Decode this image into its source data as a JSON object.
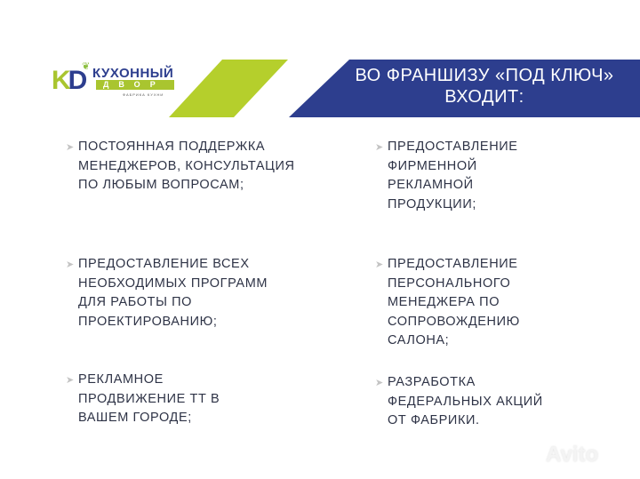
{
  "logo": {
    "mark": "KD",
    "name": "КУХОННЫЙ",
    "subname": "ДВОР",
    "tagline": "ФАБРИКА КУХНИ"
  },
  "header": {
    "title": "ВО ФРАНШИЗУ «ПОД КЛЮЧ» ВХОДИТ:"
  },
  "colors": {
    "brand_blue": "#2d3e8e",
    "brand_green": "#b5cf2c",
    "text": "#2e3346"
  },
  "items_left": [
    {
      "text": "ПОСТОЯННАЯ ПОДДЕРЖКА МЕНЕДЖЕРОВ, КОНСУЛЬТАЦИЯ ПО ЛЮБЫМ ВОПРОСАМ;"
    },
    {
      "text": "ПРЕДОСТАВЛЕНИЕ ВСЕХ НЕОБХОДИМЫХ ПРОГРАММ ДЛЯ РАБОТЫ ПО ПРОЕКТИРОВАНИЮ;"
    },
    {
      "text": "РЕКЛАМНОЕ ПРОДВИЖЕНИЕ ТТ В ВАШЕМ ГОРОДЕ;"
    }
  ],
  "items_right": [
    {
      "text": "ПРЕДОСТАВЛЕНИЕ ФИРМЕННОЙ РЕКЛАМНОЙ ПРОДУКЦИИ;"
    },
    {
      "text": "ПРЕДОСТАВЛЕНИЕ ПЕРСОНАЛЬНОГО МЕНЕДЖЕРА ПО СОПРОВОЖДЕНИЮ САЛОНА;"
    },
    {
      "text": "РАЗРАБОТКА ФЕДЕРАЛЬНЫХ АКЦИЙ ОТ ФАБРИКИ."
    }
  ],
  "watermark": "Avito"
}
